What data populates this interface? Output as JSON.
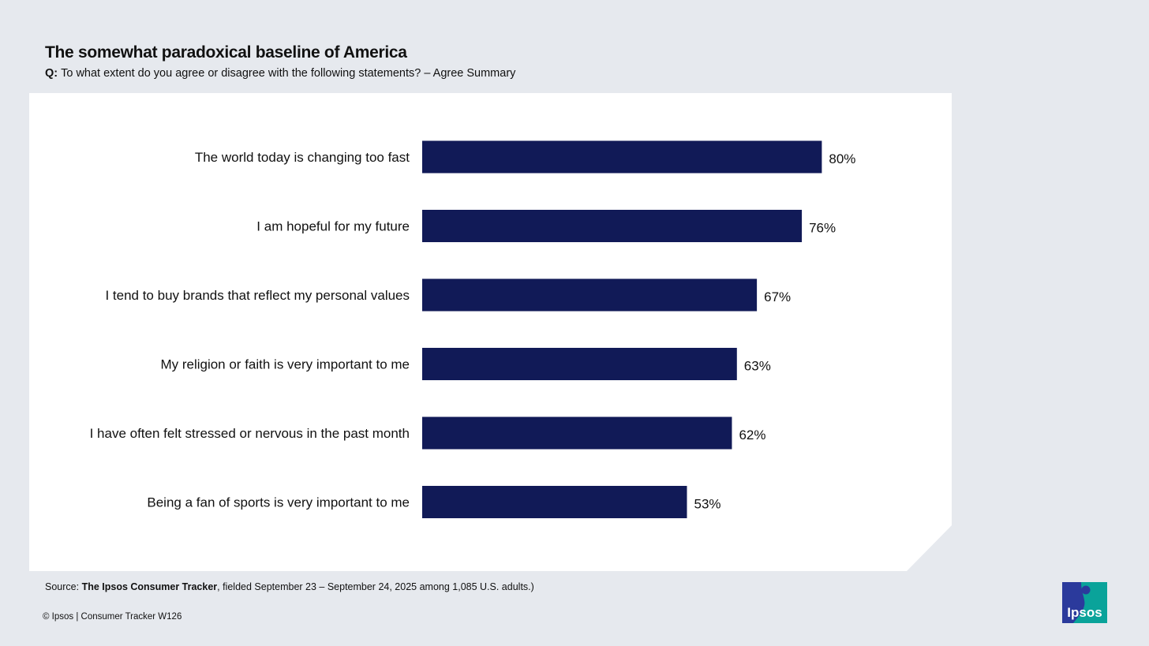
{
  "title": "The somewhat paradoxical baseline of America",
  "question": {
    "label": "Q:",
    "text": "To what extent do you agree or disagree with the following statements? – Agree Summary"
  },
  "chart_data": {
    "type": "bar",
    "orientation": "horizontal",
    "categories": [
      "The world today is changing too fast",
      "I am hopeful for my future",
      "I tend to buy brands that reflect my personal values",
      "My religion or faith is very important to me",
      "I have often felt stressed or nervous in the past month",
      "Being a fan of sports is very important to me"
    ],
    "values": [
      80,
      76,
      67,
      63,
      62,
      53
    ],
    "value_labels": [
      "80%",
      "76%",
      "67%",
      "63%",
      "62%",
      "53%"
    ],
    "unit": "%",
    "xlim": [
      0,
      100
    ],
    "grid": false,
    "bar_color": "#111a57"
  },
  "source": {
    "prefix": "Source: ",
    "name": "The Ipsos Consumer Tracker",
    "suffix": ", fielded September 23 – September 24, 2025 among 1,085 U.S. adults.)"
  },
  "copyright": "© Ipsos | Consumer Tracker W126",
  "logo": {
    "text": "Ipsos",
    "color_blue": "#2b3a9c",
    "color_teal": "#0aa39a"
  }
}
